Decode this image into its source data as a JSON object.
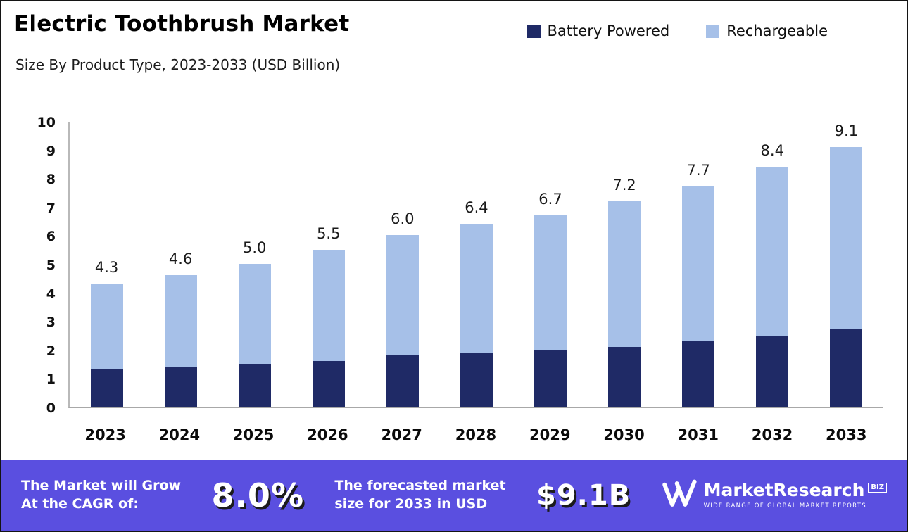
{
  "header": {
    "title": "Electric Toothbrush Market",
    "subtitle": "Size By Product Type, 2023-2033 (USD Billion)"
  },
  "legend": [
    {
      "label": "Battery Powered",
      "color": "#1f2a66"
    },
    {
      "label": "Rechargeable",
      "color": "#a6c0e8"
    }
  ],
  "chart_data": {
    "type": "bar",
    "stacked": true,
    "title": "Electric Toothbrush Market",
    "subtitle": "Size By Product Type, 2023-2033 (USD Billion)",
    "xlabel": "",
    "ylabel": "USD Billion",
    "categories": [
      "2023",
      "2024",
      "2025",
      "2026",
      "2027",
      "2028",
      "2029",
      "2030",
      "2031",
      "2032",
      "2033"
    ],
    "series": [
      {
        "name": "Battery Powered",
        "color": "#1f2a66",
        "values": [
          1.3,
          1.4,
          1.5,
          1.6,
          1.8,
          1.9,
          2.0,
          2.1,
          2.3,
          2.5,
          2.7
        ]
      },
      {
        "name": "Rechargeable",
        "color": "#a6c0e8",
        "values": [
          3.0,
          3.2,
          3.5,
          3.9,
          4.2,
          4.5,
          4.7,
          5.1,
          5.4,
          5.9,
          6.4
        ]
      }
    ],
    "totals": [
      4.3,
      4.6,
      5.0,
      5.5,
      6.0,
      6.4,
      6.7,
      7.2,
      7.7,
      8.4,
      9.1
    ],
    "ylim": [
      0,
      10
    ],
    "yticks": [
      0,
      1,
      2,
      3,
      4,
      5,
      6,
      7,
      8,
      9,
      10
    ],
    "grid": false,
    "legend_position": "top-right"
  },
  "footer": {
    "cagr_label": "The Market will Grow\nAt the CAGR of:",
    "cagr_value": "8.0%",
    "forecast_label": "The forecasted market\nsize for 2033 in USD",
    "forecast_value": "$9.1B",
    "brand": {
      "name": "MarketResearch",
      "suffix": "BIZ",
      "tagline": "WIDE RANGE OF GLOBAL MARKET REPORTS"
    }
  }
}
